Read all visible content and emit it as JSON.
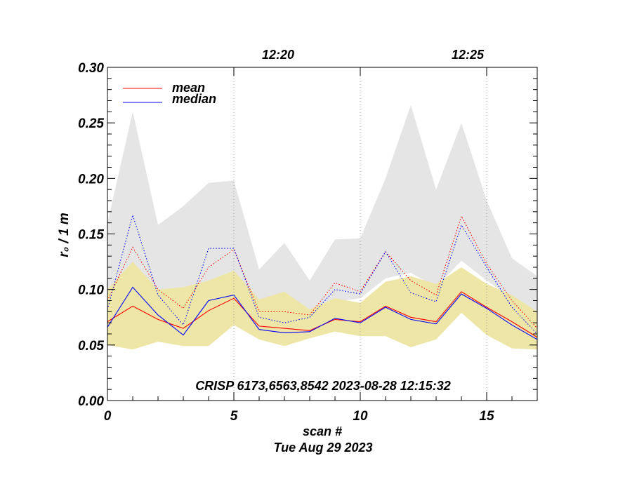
{
  "chart_data": {
    "type": "line",
    "title": "",
    "xlabel": "scan #",
    "ylabel": "r₀ / 1 m",
    "xlim": [
      0,
      17
    ],
    "ylim": [
      0,
      0.3
    ],
    "x_ticks": [
      0,
      5,
      10,
      15
    ],
    "x_tick_labels": [
      "0",
      "5",
      "10",
      "15"
    ],
    "y_ticks": [
      0.0,
      0.05,
      0.1,
      0.15,
      0.2,
      0.25,
      0.3
    ],
    "y_tick_labels": [
      "0.00",
      "0.05",
      "0.10",
      "0.15",
      "0.20",
      "0.25",
      "0.30"
    ],
    "top_axis": {
      "ticks": [
        {
          "x": 5,
          "label": ""
        },
        {
          "x": 10,
          "label": "12:20"
        },
        {
          "x": 15,
          "label": "12:25"
        }
      ],
      "label_positions": [
        6.75,
        14.25
      ]
    },
    "vlines": [
      5,
      10,
      15
    ],
    "x": [
      0,
      1,
      2,
      3,
      4,
      5,
      6,
      7,
      8,
      9,
      10,
      11,
      12,
      13,
      14,
      15,
      16,
      17
    ],
    "series": [
      {
        "name": "mean",
        "color": "#ff0000",
        "style": "solid",
        "values": [
          0.071,
          0.085,
          0.073,
          0.065,
          0.081,
          0.092,
          0.067,
          0.065,
          0.063,
          0.073,
          0.071,
          0.085,
          0.075,
          0.071,
          0.098,
          0.084,
          0.071,
          0.057
        ]
      },
      {
        "name": "median",
        "color": "#0000ff",
        "style": "solid",
        "values": [
          0.066,
          0.102,
          0.077,
          0.059,
          0.09,
          0.095,
          0.064,
          0.061,
          0.062,
          0.074,
          0.07,
          0.084,
          0.073,
          0.069,
          0.096,
          0.083,
          0.068,
          0.055
        ]
      },
      {
        "name": "mean (dotted)",
        "color": "#ff0000",
        "style": "dotted",
        "values": [
          0.09,
          0.138,
          0.1,
          0.083,
          0.12,
          0.136,
          0.08,
          0.08,
          0.077,
          0.106,
          0.098,
          0.134,
          0.108,
          0.095,
          0.166,
          0.123,
          0.09,
          0.065
        ]
      },
      {
        "name": "median (dotted)",
        "color": "#0000ff",
        "style": "dotted",
        "values": [
          0.082,
          0.167,
          0.095,
          0.068,
          0.137,
          0.137,
          0.075,
          0.07,
          0.075,
          0.1,
          0.096,
          0.134,
          0.097,
          0.089,
          0.158,
          0.12,
          0.084,
          0.06
        ]
      }
    ],
    "bands": [
      {
        "name": "outer range",
        "color": "#e5e5e5",
        "upper": [
          0.16,
          0.26,
          0.158,
          0.175,
          0.196,
          0.198,
          0.118,
          0.142,
          0.108,
          0.145,
          0.146,
          0.2,
          0.266,
          0.19,
          0.25,
          0.18,
          0.128,
          0.112
        ],
        "lower": [
          0.06,
          0.11,
          0.095,
          0.087,
          0.104,
          0.112,
          0.084,
          0.085,
          0.078,
          0.089,
          0.092,
          0.11,
          0.115,
          0.102,
          0.126,
          0.108,
          0.092,
          0.075
        ]
      },
      {
        "name": "inner range",
        "color": "#eee6a6",
        "upper": [
          0.1,
          0.125,
          0.1,
          0.102,
          0.108,
          0.117,
          0.091,
          0.098,
          0.082,
          0.092,
          0.088,
          0.107,
          0.112,
          0.105,
          0.12,
          0.105,
          0.095,
          0.08
        ],
        "lower": [
          0.05,
          0.046,
          0.053,
          0.049,
          0.049,
          0.068,
          0.055,
          0.049,
          0.056,
          0.062,
          0.058,
          0.058,
          0.048,
          0.055,
          0.079,
          0.059,
          0.047,
          0.046
        ]
      }
    ],
    "legend": {
      "position": "top-left",
      "entries": [
        {
          "label": "mean",
          "color": "#ff0000"
        },
        {
          "label": "median",
          "color": "#0000ff"
        }
      ]
    },
    "annotation": "CRISP 6173,6563,8542 2023-08-28 12:15:32",
    "date_label": "Tue Aug 29 2023"
  }
}
